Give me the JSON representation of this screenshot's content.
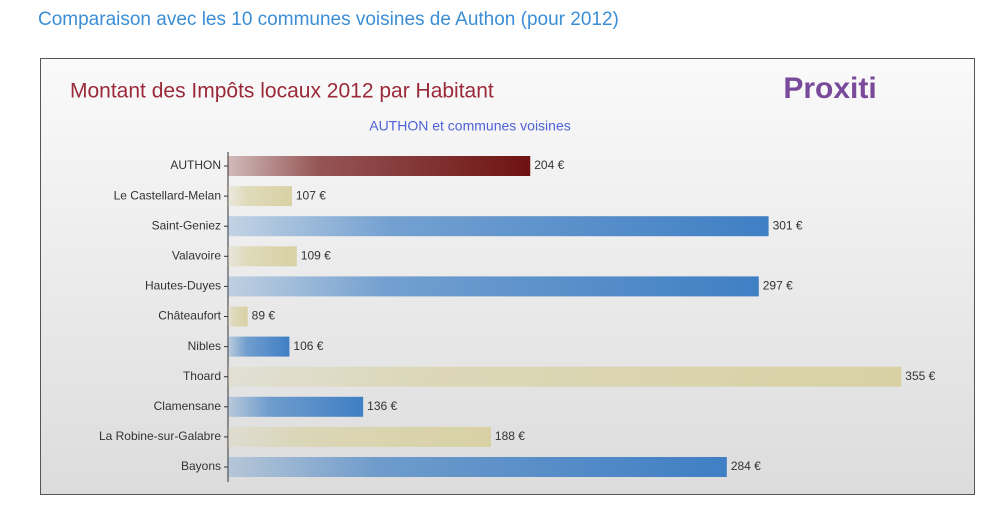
{
  "heading": "Comparaison avec les 10 communes voisines de Authon (pour 2012)",
  "chart_data": {
    "type": "bar",
    "orientation": "horizontal",
    "title": "Montant des Impôts locaux 2012 par Habitant",
    "subtitle": "AUTHON et communes voisines",
    "logo": "Proxiti",
    "categories": [
      "AUTHON",
      "Le Castellard-Melan",
      "Saint-Geniez",
      "Valavoire",
      "Hautes-Duyes",
      "Châteaufort",
      "Nibles",
      "Thoard",
      "Clamensane",
      "La Robine-sur-Galabre",
      "Bayons"
    ],
    "values": [
      204,
      107,
      301,
      109,
      297,
      89,
      106,
      355,
      136,
      188,
      284
    ],
    "value_labels": [
      "204 €",
      "107 €",
      "301 €",
      "109 €",
      "297 €",
      "89 €",
      "106 €",
      "355 €",
      "136 €",
      "188 €",
      "284 €"
    ],
    "colors": [
      "#6e1212",
      "#d8d1a4",
      "#3f7fc4",
      "#d8d1a4",
      "#3f7fc4",
      "#d8d1a4",
      "#3f7fc4",
      "#d8d1a4",
      "#3f7fc4",
      "#d8d1a4",
      "#3f7fc4"
    ],
    "xlim": [
      81,
      385
    ]
  }
}
